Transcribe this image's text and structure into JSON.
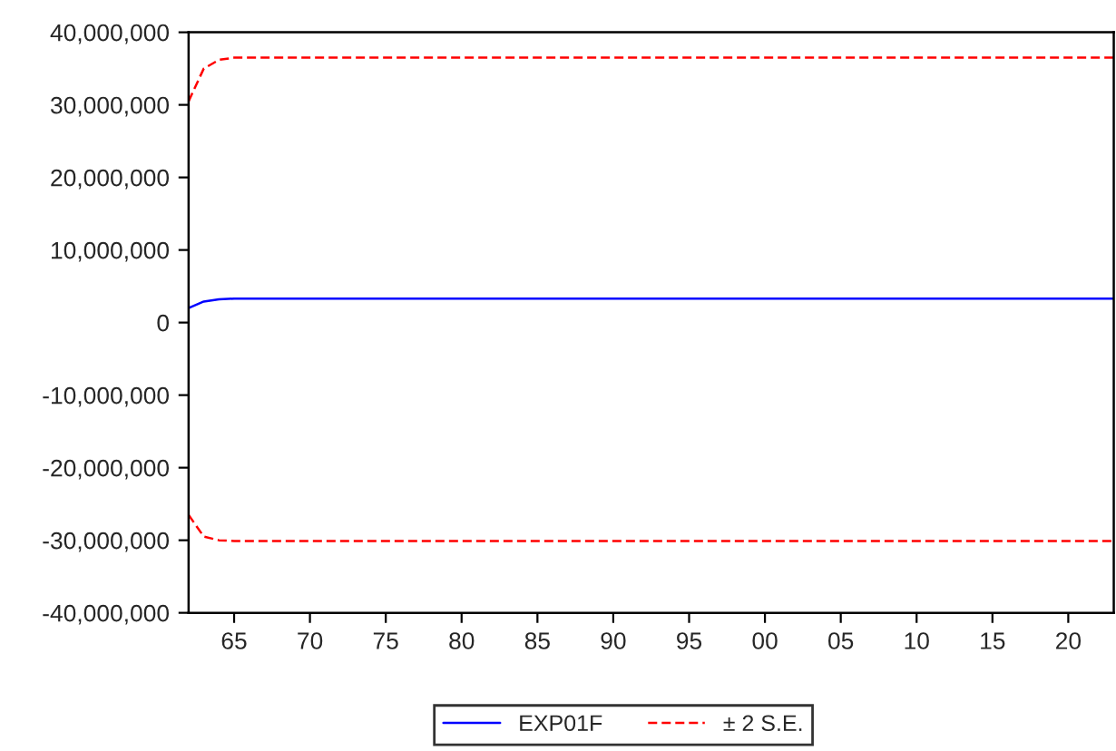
{
  "chart_data": {
    "type": "line",
    "xlim": [
      1962,
      2023
    ],
    "xticks": [
      {
        "value": 1965,
        "label": "65"
      },
      {
        "value": 1970,
        "label": "70"
      },
      {
        "value": 1975,
        "label": "75"
      },
      {
        "value": 1980,
        "label": "80"
      },
      {
        "value": 1985,
        "label": "85"
      },
      {
        "value": 1990,
        "label": "90"
      },
      {
        "value": 1995,
        "label": "95"
      },
      {
        "value": 2000,
        "label": "00"
      },
      {
        "value": 2005,
        "label": "05"
      },
      {
        "value": 2010,
        "label": "10"
      },
      {
        "value": 2015,
        "label": "15"
      },
      {
        "value": 2020,
        "label": "20"
      }
    ],
    "ylim": [
      -40000000,
      40000000
    ],
    "yticks": [
      {
        "value": -40000000,
        "label": "-40,000,000"
      },
      {
        "value": -30000000,
        "label": "-30,000,000"
      },
      {
        "value": -20000000,
        "label": "-20,000,000"
      },
      {
        "value": -10000000,
        "label": "-10,000,000"
      },
      {
        "value": 0,
        "label": "0"
      },
      {
        "value": 10000000,
        "label": "10,000,000"
      },
      {
        "value": 20000000,
        "label": "20,000,000"
      },
      {
        "value": 30000000,
        "label": "30,000,000"
      },
      {
        "value": 40000000,
        "label": "40,000,000"
      }
    ],
    "grid": false,
    "legend": "bottom",
    "series": [
      {
        "name": "EXP01F",
        "color": "#0000ff",
        "line_style": "solid",
        "x": [
          1962,
          1963,
          1964,
          1965,
          1966,
          2023
        ],
        "values": [
          2000000,
          2900000,
          3200000,
          3300000,
          3300000,
          3300000
        ]
      },
      {
        "name": "± 2 S.E.",
        "color": "#ff0000",
        "line_style": "dashed",
        "x": [
          1962,
          1963,
          1964,
          1965,
          2023
        ],
        "values": [
          30500000,
          35000000,
          36200000,
          36500000,
          36500000
        ]
      },
      {
        "color": "#ff0000",
        "line_style": "dashed",
        "x": [
          1962,
          1963,
          1964,
          1965,
          2023
        ],
        "values": [
          -26500000,
          -29500000,
          -30000000,
          -30100000,
          -30100000
        ]
      }
    ]
  }
}
